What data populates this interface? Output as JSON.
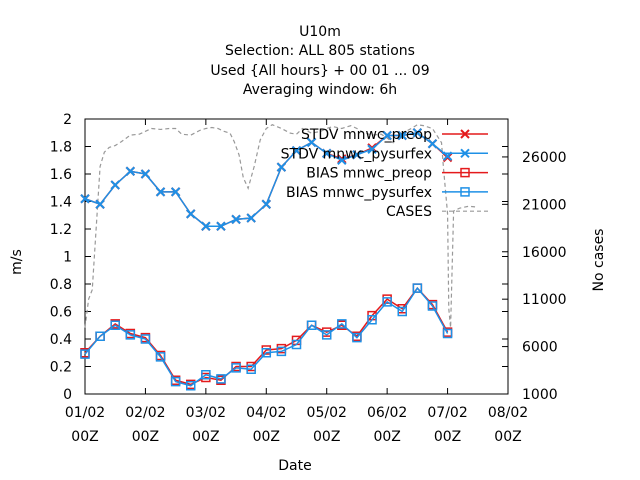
{
  "chart_data": {
    "type": "line",
    "title_lines": [
      "U10m",
      "Selection: ALL    805 stations",
      "Used {All hours} + 00 01 ... 09",
      "Averaging window:  6h"
    ],
    "xlabel": "Date",
    "ylabel": "m/s",
    "y2label": "No cases",
    "ylim": [
      0,
      2
    ],
    "y2lim": [
      1000,
      30000
    ],
    "yticks": [
      "0",
      "0.2",
      "0.4",
      "0.6",
      "0.8",
      "1",
      "1.2",
      "1.4",
      "1.6",
      "1.8",
      "2"
    ],
    "y2ticks": [
      "1000",
      "6000",
      "11000",
      "16000",
      "21000",
      "26000"
    ],
    "xticks": [
      {
        "date": "01/02",
        "hour": "00Z"
      },
      {
        "date": "02/02",
        "hour": "00Z"
      },
      {
        "date": "03/02",
        "hour": "00Z"
      },
      {
        "date": "04/02",
        "hour": "00Z"
      },
      {
        "date": "05/02",
        "hour": "00Z"
      },
      {
        "date": "06/02",
        "hour": "00Z"
      },
      {
        "date": "07/02",
        "hour": "00Z"
      },
      {
        "date": "08/02",
        "hour": "00Z"
      }
    ],
    "x_unit": "days",
    "legend_position": "top-right",
    "grid": false,
    "series": [
      {
        "name": "STDV mnwc_preop",
        "axis": "y",
        "marker": "x",
        "color": "#e41a1c",
        "x": [
          0,
          0.25,
          0.5,
          0.75,
          1,
          1.25,
          1.5,
          1.75,
          2,
          2.25,
          2.5,
          2.75,
          3,
          3.25,
          3.5,
          3.75,
          4,
          4.25,
          4.5,
          4.75,
          5,
          5.25,
          5.5,
          5.75,
          6,
          6.25,
          6.5,
          6.75,
          7
        ],
        "values": [
          1.42,
          1.38,
          1.52,
          1.62,
          1.6,
          1.47,
          1.47,
          1.31,
          1.22,
          1.22,
          1.27,
          1.28,
          1.38,
          1.65,
          1.77,
          1.83,
          1.75,
          1.71,
          1.74,
          1.79,
          1.88,
          1.88,
          1.9,
          1.82,
          1.72,
          null,
          null,
          null,
          null
        ]
      },
      {
        "name": "STDV mnwc_pysurfex",
        "axis": "y",
        "marker": "x",
        "color": "#1e90e6",
        "x": [
          0,
          0.25,
          0.5,
          0.75,
          1,
          1.25,
          1.5,
          1.75,
          2,
          2.25,
          2.5,
          2.75,
          3,
          3.25,
          3.5,
          3.75,
          4,
          4.25,
          4.5,
          4.75,
          5,
          5.25,
          5.5,
          5.75,
          6,
          6.25,
          6.5,
          6.75,
          7
        ],
        "values": [
          1.42,
          1.38,
          1.52,
          1.62,
          1.6,
          1.47,
          1.47,
          1.31,
          1.22,
          1.22,
          1.27,
          1.28,
          1.38,
          1.65,
          1.77,
          1.83,
          1.75,
          1.7,
          1.74,
          1.78,
          1.88,
          1.88,
          1.9,
          1.82,
          1.73,
          null,
          null,
          null,
          null
        ]
      },
      {
        "name": "BIAS mnwc_preop",
        "axis": "y",
        "marker": "square",
        "color": "#e41a1c",
        "x": [
          0,
          0.25,
          0.5,
          0.75,
          1,
          1.25,
          1.5,
          1.75,
          2,
          2.25,
          2.5,
          2.75,
          3,
          3.25,
          3.5,
          3.75,
          4,
          4.25,
          4.5,
          4.75,
          5,
          5.25,
          5.5,
          5.75,
          6,
          6.25,
          6.5,
          6.75,
          7
        ],
        "values": [
          0.3,
          0.42,
          0.51,
          0.44,
          0.41,
          0.28,
          0.1,
          0.07,
          0.12,
          0.1,
          0.2,
          0.2,
          0.32,
          0.33,
          0.39,
          0.5,
          0.45,
          0.5,
          0.42,
          0.57,
          0.69,
          0.62,
          0.77,
          0.65,
          0.45,
          null,
          null,
          null,
          null
        ]
      },
      {
        "name": "BIAS mnwc_pysurfex",
        "axis": "y",
        "marker": "square",
        "color": "#1e90e6",
        "x": [
          0,
          0.25,
          0.5,
          0.75,
          1,
          1.25,
          1.5,
          1.75,
          2,
          2.25,
          2.5,
          2.75,
          3,
          3.25,
          3.5,
          3.75,
          4,
          4.25,
          4.5,
          4.75,
          5,
          5.25,
          5.5,
          5.75,
          6,
          6.25,
          6.5,
          6.75,
          7
        ],
        "values": [
          0.29,
          0.42,
          0.5,
          0.43,
          0.4,
          0.27,
          0.09,
          0.06,
          0.14,
          0.11,
          0.19,
          0.18,
          0.3,
          0.31,
          0.36,
          0.5,
          0.43,
          0.51,
          0.41,
          0.54,
          0.67,
          0.6,
          0.77,
          0.64,
          0.44,
          null,
          null,
          null,
          null
        ]
      },
      {
        "name": "CASES",
        "axis": "y2",
        "marker": "none",
        "color": "#999999",
        "dash": true,
        "x": [
          0,
          0.06,
          0.12,
          0.18,
          0.25,
          0.32,
          0.4,
          0.5,
          0.6,
          0.75,
          0.9,
          1,
          1.1,
          1.25,
          1.4,
          1.5,
          1.6,
          1.75,
          1.9,
          2,
          2.1,
          2.2,
          2.3,
          2.4,
          2.47,
          2.55,
          2.62,
          2.7,
          2.8,
          2.9,
          3,
          3.1,
          3.25,
          3.4,
          3.5,
          3.6,
          3.75,
          3.9,
          4,
          4.1,
          4.25,
          4.4,
          4.5,
          4.6,
          4.75,
          4.9,
          5,
          5.1,
          5.25,
          5.4,
          5.5,
          5.6,
          5.75,
          5.85,
          5.9,
          5.93,
          6,
          6.02,
          6.05,
          6.1,
          6.2,
          6.35,
          6.5
        ],
        "values": [
          8000,
          11000,
          12000,
          18000,
          25000,
          26500,
          27000,
          27200,
          27600,
          28300,
          28400,
          28700,
          29000,
          28900,
          29000,
          29000,
          28400,
          28300,
          28800,
          29000,
          29100,
          29000,
          28700,
          28500,
          27600,
          26200,
          23800,
          22700,
          25000,
          27800,
          29000,
          29400,
          29000,
          28500,
          28400,
          29000,
          28500,
          28700,
          29000,
          29200,
          29000,
          29300,
          29000,
          28600,
          28300,
          28400,
          28000,
          27500,
          28500,
          29000,
          29400,
          29300,
          29000,
          28000,
          27500,
          25000,
          20000,
          10000,
          8000,
          20300,
          20600,
          20800,
          20700
        ]
      }
    ]
  }
}
